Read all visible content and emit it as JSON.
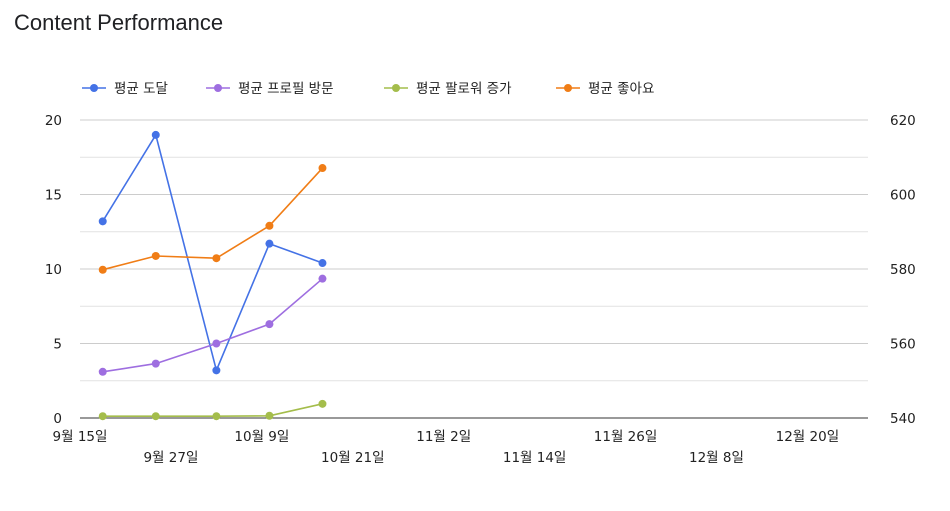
{
  "chart_data": {
    "type": "line",
    "title": "Content Performance",
    "legend_position": "top-left",
    "grid": true,
    "x": {
      "ticks_row1": [
        "9월 15일",
        "10월 9일",
        "11월 2일",
        "11월 26일",
        "12월 20일"
      ],
      "ticks_row2": [
        "9월 27일",
        "10월 21일",
        "11월 14일",
        "12월 8일"
      ],
      "range": [
        "2024-09-15",
        "2024-12-28"
      ]
    },
    "y_left": {
      "range": [
        0,
        20
      ],
      "ticks": [
        "0",
        "5",
        "10",
        "15",
        "20"
      ]
    },
    "y_right": {
      "range": [
        540,
        620
      ],
      "ticks": [
        "540",
        "560",
        "580",
        "600",
        "620"
      ]
    },
    "series": [
      {
        "name": "평균 도달",
        "color": "#4472e6",
        "axis": "left",
        "points": [
          {
            "x": "2024-09-18",
            "y": 13.2
          },
          {
            "x": "2024-09-25",
            "y": 19.0
          },
          {
            "x": "2024-10-03",
            "y": 3.2
          },
          {
            "x": "2024-10-10",
            "y": 11.7
          },
          {
            "x": "2024-10-17",
            "y": 10.4
          }
        ]
      },
      {
        "name": "평균 프로필 방문",
        "color": "#9e6ee0",
        "axis": "left",
        "points": [
          {
            "x": "2024-09-18",
            "y": 3.1
          },
          {
            "x": "2024-09-25",
            "y": 3.65
          },
          {
            "x": "2024-10-03",
            "y": 5.0
          },
          {
            "x": "2024-10-10",
            "y": 6.3
          },
          {
            "x": "2024-10-17",
            "y": 9.35
          }
        ]
      },
      {
        "name": "평균 팔로워 증가",
        "color": "#a4bd4b",
        "axis": "left",
        "points": [
          {
            "x": "2024-09-18",
            "y": 0.12
          },
          {
            "x": "2024-09-25",
            "y": 0.12
          },
          {
            "x": "2024-10-03",
            "y": 0.12
          },
          {
            "x": "2024-10-10",
            "y": 0.15
          },
          {
            "x": "2024-10-17",
            "y": 0.95
          }
        ]
      },
      {
        "name": "평균 좋아요",
        "color": "#f07d16",
        "axis": "right",
        "points": [
          {
            "x": "2024-09-18",
            "y": 579.8
          },
          {
            "x": "2024-09-25",
            "y": 583.5
          },
          {
            "x": "2024-10-03",
            "y": 582.9
          },
          {
            "x": "2024-10-10",
            "y": 591.6
          },
          {
            "x": "2024-10-17",
            "y": 607.1
          }
        ]
      }
    ]
  }
}
